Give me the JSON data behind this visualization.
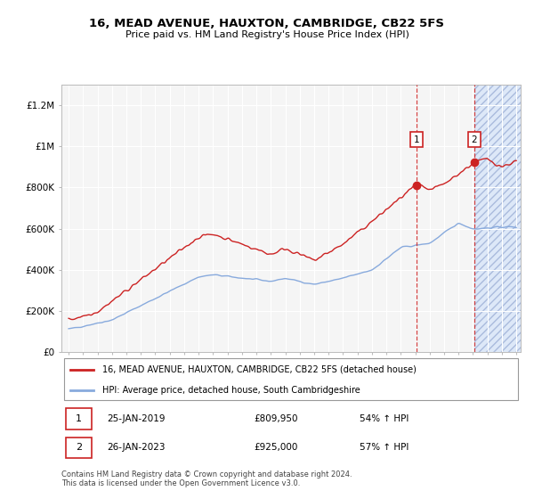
{
  "title1": "16, MEAD AVENUE, HAUXTON, CAMBRIDGE, CB22 5FS",
  "title2": "Price paid vs. HM Land Registry's House Price Index (HPI)",
  "legend_label1": "16, MEAD AVENUE, HAUXTON, CAMBRIDGE, CB22 5FS (detached house)",
  "legend_label2": "HPI: Average price, detached house, South Cambridgeshire",
  "footer": "Contains HM Land Registry data © Crown copyright and database right 2024.\nThis data is licensed under the Open Government Licence v3.0.",
  "annotation1": {
    "label": "1",
    "date": "25-JAN-2019",
    "price": "£809,950",
    "pct": "54% ↑ HPI"
  },
  "annotation2": {
    "label": "2",
    "date": "26-JAN-2023",
    "price": "£925,000",
    "pct": "57% ↑ HPI"
  },
  "red_color": "#cc2222",
  "blue_color": "#88aadd",
  "bg_color": "#f5f5f5",
  "hatch_color": "#dde8f8",
  "grid_color": "#ffffff",
  "ylim": [
    0,
    1300000
  ],
  "yticks": [
    0,
    200000,
    400000,
    600000,
    800000,
    1000000,
    1200000
  ],
  "ytick_labels": [
    "£0",
    "£200K",
    "£400K",
    "£600K",
    "£800K",
    "£1M",
    "£1.2M"
  ],
  "x_start_year": 1995,
  "x_end_year": 2026,
  "sale1_year": 2019.07,
  "sale2_year": 2023.07,
  "sale1_price": 809950,
  "sale2_price": 925000
}
